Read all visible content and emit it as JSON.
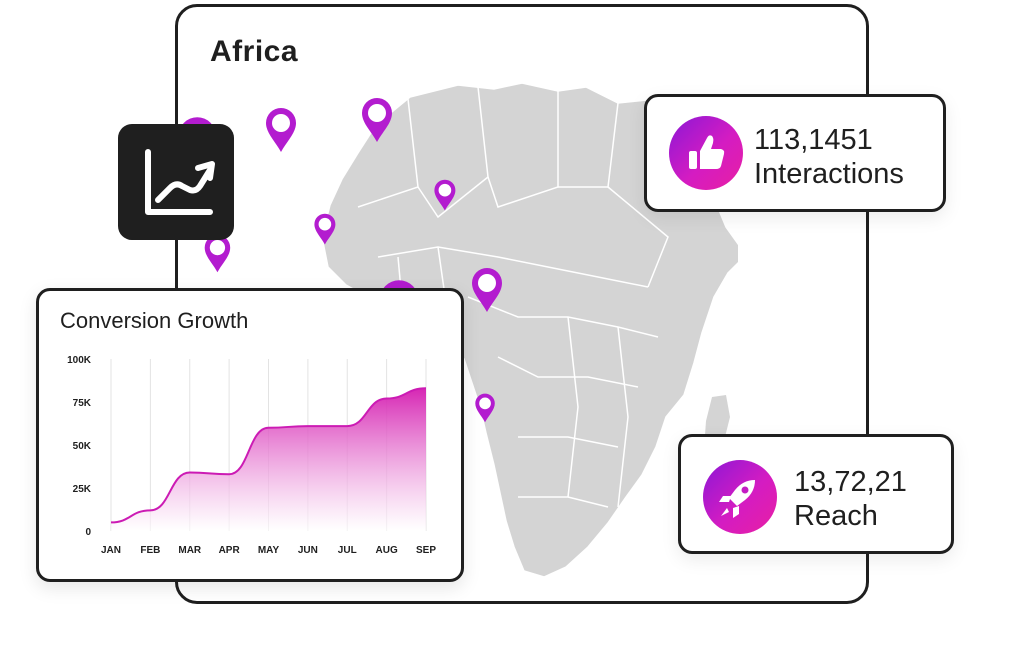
{
  "map": {
    "title": "Africa",
    "region_color": "#d4d4d4",
    "pin_color": "#b31ccf"
  },
  "stats": [
    {
      "value": "113,1451",
      "label": "Interactions",
      "icon": "thumbs-up-icon"
    },
    {
      "value": "13,72,21",
      "label": "Reach",
      "icon": "rocket-icon"
    }
  ],
  "trend_tile": {
    "icon": "trend-chart-icon"
  },
  "chart_data": {
    "type": "area",
    "title": "Conversion Growth",
    "categories": [
      "JAN",
      "FEB",
      "MAR",
      "APR",
      "MAY",
      "JUN",
      "JUL",
      "AUG",
      "SEP"
    ],
    "values": [
      5000,
      12000,
      34000,
      33000,
      60000,
      61000,
      61000,
      77000,
      83000
    ],
    "y_ticks": [
      "0",
      "25K",
      "50K",
      "75K",
      "100K"
    ],
    "ylim": [
      0,
      100000
    ],
    "grid": "vertical",
    "line_color": "#cc1bb4",
    "fill_color_top": "#d41cb0",
    "fill_color_bottom": "#ffffff"
  }
}
